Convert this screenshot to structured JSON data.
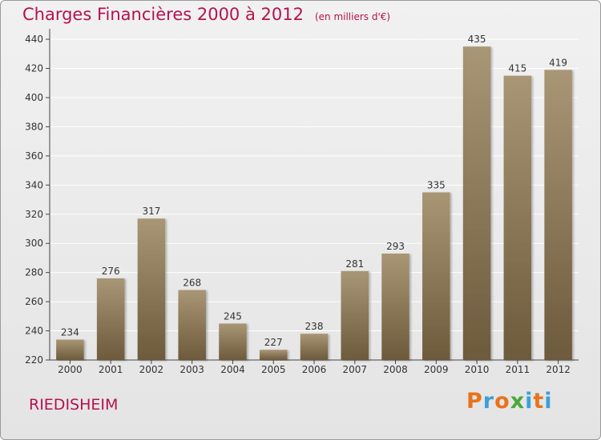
{
  "header": {
    "title": "Charges Financières 2000 à 2012",
    "unit": "(en milliers d'€)"
  },
  "footer": {
    "commune": "RIEDISHEIM",
    "brand_letters": [
      "P",
      "r",
      "o",
      "x",
      "i",
      "t",
      "i"
    ],
    "brand_colors": [
      "#e8731c",
      "#3aa0d8",
      "#e8731c",
      "#4aa83a",
      "#3aa0d8",
      "#e8731c",
      "#3aa0d8"
    ]
  },
  "colors": {
    "title": "#b5124f",
    "bar_top": "#a89675",
    "bar_bottom": "#6d5a3c",
    "axis": "#444444",
    "grid": "#ffffff"
  },
  "chart_data": {
    "type": "bar",
    "categories": [
      "2000",
      "2001",
      "2002",
      "2003",
      "2004",
      "2005",
      "2006",
      "2007",
      "2008",
      "2009",
      "2010",
      "2011",
      "2012"
    ],
    "values": [
      234,
      276,
      317,
      268,
      245,
      227,
      238,
      281,
      293,
      335,
      435,
      415,
      419
    ],
    "data_labels": [
      "234",
      "276",
      "317",
      "268",
      "245",
      "227",
      "238",
      "281",
      "293",
      "335",
      "435",
      "415",
      "419"
    ],
    "yticks": [
      220,
      240,
      260,
      280,
      300,
      320,
      340,
      360,
      380,
      400,
      420,
      440
    ],
    "ylim": [
      220,
      445
    ],
    "grid": true,
    "title": "Charges Financières 2000 à 2012",
    "xlabel": "",
    "ylabel": ""
  }
}
